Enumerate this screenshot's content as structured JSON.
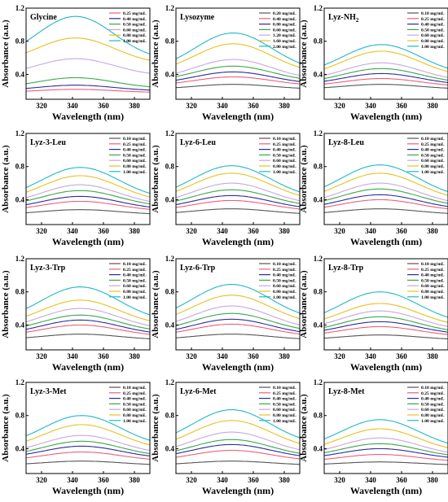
{
  "chart_data": [
    {
      "type": "line",
      "title": "Glycine",
      "title_sub": "",
      "xlabel": "Wavelength (nm)",
      "ylabel": "Absorbance (a.u.)",
      "xlim": [
        310,
        390
      ],
      "ylim": [
        0.1,
        1.2
      ],
      "xticks": [
        "320",
        "340",
        "360",
        "380"
      ],
      "yticks": [
        "0.4",
        "0.8",
        "1.2"
      ],
      "legend_position": "top-right",
      "peak_x": 342,
      "series": [
        {
          "name": "0.25 mg/mL",
          "color": "#e8607a",
          "edge": 0.18,
          "peak": 0.22
        },
        {
          "name": "0.40 mg/mL",
          "color": "#2c2c9a",
          "edge": 0.2,
          "peak": 0.27
        },
        {
          "name": "0.50 mg/mL",
          "color": "#3aa84a",
          "edge": 0.23,
          "peak": 0.36
        },
        {
          "name": "0.60 mg/mL",
          "color": "#c8a6e0",
          "edge": 0.38,
          "peak": 0.59
        },
        {
          "name": "0.80 mg/mL",
          "color": "#e8c020",
          "edge": 0.52,
          "peak": 0.84
        },
        {
          "name": "1.00 mg/mL",
          "color": "#20b8c8",
          "edge": 0.56,
          "peak": 1.1
        }
      ]
    },
    {
      "type": "line",
      "title": "Lysozyme",
      "title_sub": "",
      "xlabel": "Wavelength (nm)",
      "ylabel": "Absorbance (a.u.)",
      "xlim": [
        310,
        390
      ],
      "ylim": [
        0.1,
        1.2
      ],
      "xticks": [
        "320",
        "340",
        "360",
        "380"
      ],
      "yticks": [
        "0.4",
        "0.8",
        "1.2"
      ],
      "legend_position": "top-right",
      "peak_x": 347,
      "series": [
        {
          "name": "0.20 mg/mL",
          "color": "#555555",
          "edge": 0.22,
          "peak": 0.28
        },
        {
          "name": "0.40 mg/mL",
          "color": "#e8607a",
          "edge": 0.26,
          "peak": 0.37
        },
        {
          "name": "0.80 mg/mL",
          "color": "#2c2c9a",
          "edge": 0.28,
          "peak": 0.43
        },
        {
          "name": "0.60 mg/mL",
          "color": "#3aa84a",
          "edge": 0.31,
          "peak": 0.5
        },
        {
          "name": "1.20 mg/mL",
          "color": "#c8a6e0",
          "edge": 0.33,
          "peak": 0.58
        },
        {
          "name": "1.60 mg/mL",
          "color": "#e8c020",
          "edge": 0.4,
          "peak": 0.77
        },
        {
          "name": "2.00 mg/mL",
          "color": "#20b8c8",
          "edge": 0.43,
          "peak": 0.9
        }
      ]
    },
    {
      "type": "line",
      "title": "Lyz-NH",
      "title_sub": "2",
      "xlabel": "Wavelength (nm)",
      "ylabel": "Absorbance (a.u.)",
      "xlim": [
        310,
        390
      ],
      "ylim": [
        0.1,
        1.2
      ],
      "xticks": [
        "320",
        "340",
        "360",
        "380"
      ],
      "yticks": [
        "0.4",
        "0.8",
        "1.2"
      ],
      "legend_position": "top-right",
      "peak_x": 347,
      "series": [
        {
          "name": "0.10 mg/mL",
          "color": "#555555",
          "edge": 0.22,
          "peak": 0.28
        },
        {
          "name": "0.25 mg/mL",
          "color": "#e8607a",
          "edge": 0.25,
          "peak": 0.35
        },
        {
          "name": "0.40 mg/mL",
          "color": "#2c2c9a",
          "edge": 0.27,
          "peak": 0.41
        },
        {
          "name": "0.50 mg/mL",
          "color": "#3aa84a",
          "edge": 0.29,
          "peak": 0.47
        },
        {
          "name": "0.60 mg/mL",
          "color": "#c8a6e0",
          "edge": 0.31,
          "peak": 0.54
        },
        {
          "name": "0.80 mg/mL",
          "color": "#e8c020",
          "edge": 0.36,
          "peak": 0.68
        },
        {
          "name": "1.00 mg/mL",
          "color": "#20b8c8",
          "edge": 0.39,
          "peak": 0.76
        }
      ]
    },
    {
      "type": "line",
      "title": "Lyz-3-Leu",
      "title_sub": "",
      "xlabel": "Wavelength (nm)",
      "ylabel": "Absorbance (a.u.)",
      "xlim": [
        310,
        390
      ],
      "ylim": [
        0.1,
        1.2
      ],
      "xticks": [
        "320",
        "340",
        "360",
        "380"
      ],
      "yticks": [
        "0.4",
        "0.8",
        "1.2"
      ],
      "legend_position": "top-right",
      "peak_x": 345,
      "series": [
        {
          "name": "0.10 mg/mL",
          "color": "#555555",
          "edge": 0.22,
          "peak": 0.28
        },
        {
          "name": "0.25 mg/mL",
          "color": "#e8607a",
          "edge": 0.26,
          "peak": 0.38
        },
        {
          "name": "0.40 mg/mL",
          "color": "#2c2c9a",
          "edge": 0.28,
          "peak": 0.44
        },
        {
          "name": "0.50 mg/mL",
          "color": "#3aa84a",
          "edge": 0.31,
          "peak": 0.51
        },
        {
          "name": "0.60 mg/mL",
          "color": "#c8a6e0",
          "edge": 0.33,
          "peak": 0.58
        },
        {
          "name": "0.80 mg/mL",
          "color": "#e8c020",
          "edge": 0.37,
          "peak": 0.69
        },
        {
          "name": "1.00 mg/mL",
          "color": "#20b8c8",
          "edge": 0.4,
          "peak": 0.79
        }
      ]
    },
    {
      "type": "line",
      "title": "Lyz-6-Leu",
      "title_sub": "",
      "xlabel": "Wavelength (nm)",
      "ylabel": "Absorbance (a.u.)",
      "xlim": [
        310,
        390
      ],
      "ylim": [
        0.1,
        1.2
      ],
      "xticks": [
        "320",
        "340",
        "360",
        "380"
      ],
      "yticks": [
        "0.4",
        "0.8",
        "1.2"
      ],
      "legend_position": "top-right",
      "peak_x": 346,
      "series": [
        {
          "name": "0.10 mg/mL",
          "color": "#555555",
          "edge": 0.22,
          "peak": 0.29
        },
        {
          "name": "0.25 mg/mL",
          "color": "#e8607a",
          "edge": 0.26,
          "peak": 0.39
        },
        {
          "name": "0.40 mg/mL",
          "color": "#2c2c9a",
          "edge": 0.28,
          "peak": 0.45
        },
        {
          "name": "0.50 mg/mL",
          "color": "#3aa84a",
          "edge": 0.31,
          "peak": 0.52
        },
        {
          "name": "0.60 mg/mL",
          "color": "#c8a6e0",
          "edge": 0.33,
          "peak": 0.6
        },
        {
          "name": "0.80 mg/mL",
          "color": "#e8c020",
          "edge": 0.38,
          "peak": 0.72
        },
        {
          "name": "1.00 mg/mL",
          "color": "#20b8c8",
          "edge": 0.41,
          "peak": 0.81
        }
      ]
    },
    {
      "type": "line",
      "title": "Lyz-8-Leu",
      "title_sub": "",
      "xlabel": "Wavelength (nm)",
      "ylabel": "Absorbance (a.u.)",
      "xlim": [
        310,
        390
      ],
      "ylim": [
        0.1,
        1.2
      ],
      "xticks": [
        "320",
        "340",
        "360",
        "380"
      ],
      "yticks": [
        "0.4",
        "0.8",
        "1.2"
      ],
      "legend_position": "top-right",
      "peak_x": 346,
      "series": [
        {
          "name": "0.10 mg/mL",
          "color": "#555555",
          "edge": 0.22,
          "peak": 0.29
        },
        {
          "name": "0.25 mg/mL",
          "color": "#e8607a",
          "edge": 0.26,
          "peak": 0.4
        },
        {
          "name": "0.40 mg/mL",
          "color": "#2c2c9a",
          "edge": 0.28,
          "peak": 0.46
        },
        {
          "name": "0.50 mg/mL",
          "color": "#3aa84a",
          "edge": 0.31,
          "peak": 0.53
        },
        {
          "name": "0.60 mg/mL",
          "color": "#c8a6e0",
          "edge": 0.33,
          "peak": 0.6
        },
        {
          "name": "0.80 mg/mL",
          "color": "#e8c020",
          "edge": 0.38,
          "peak": 0.72
        },
        {
          "name": "1.00 mg/mL",
          "color": "#20b8c8",
          "edge": 0.41,
          "peak": 0.82
        }
      ]
    },
    {
      "type": "line",
      "title": "Lyz-3-Trp",
      "title_sub": "",
      "xlabel": "Wavelength (nm)",
      "ylabel": "Absorbance (a.u.)",
      "xlim": [
        310,
        390
      ],
      "ylim": [
        0.1,
        1.2
      ],
      "xticks": [
        "320",
        "340",
        "360",
        "380"
      ],
      "yticks": [
        "0.4",
        "0.8",
        "1.2"
      ],
      "legend_position": "top-right",
      "peak_x": 345,
      "series": [
        {
          "name": "0.10 mg/mL",
          "color": "#555555",
          "edge": 0.22,
          "peak": 0.29
        },
        {
          "name": "0.25 mg/mL",
          "color": "#e8607a",
          "edge": 0.26,
          "peak": 0.4
        },
        {
          "name": "0.40 mg/mL",
          "color": "#2c2c9a",
          "edge": 0.28,
          "peak": 0.46
        },
        {
          "name": "0.50 mg/mL",
          "color": "#3aa84a",
          "edge": 0.31,
          "peak": 0.52
        },
        {
          "name": "0.60 mg/mL",
          "color": "#c8a6e0",
          "edge": 0.34,
          "peak": 0.6
        },
        {
          "name": "0.80 mg/mL",
          "color": "#e8c020",
          "edge": 0.39,
          "peak": 0.7
        },
        {
          "name": "1.00 mg/mL",
          "color": "#20b8c8",
          "edge": 0.44,
          "peak": 0.86
        }
      ]
    },
    {
      "type": "line",
      "title": "Lyz-6-Trp",
      "title_sub": "",
      "xlabel": "Wavelength (nm)",
      "ylabel": "Absorbance (a.u.)",
      "xlim": [
        310,
        390
      ],
      "ylim": [
        0.1,
        1.2
      ],
      "xticks": [
        "320",
        "340",
        "360",
        "380"
      ],
      "yticks": [
        "0.4",
        "0.8",
        "1.2"
      ],
      "legend_position": "top-right",
      "peak_x": 346,
      "series": [
        {
          "name": "0.10 mg/mL",
          "color": "#555555",
          "edge": 0.22,
          "peak": 0.29
        },
        {
          "name": "0.25 mg/mL",
          "color": "#e8607a",
          "edge": 0.26,
          "peak": 0.41
        },
        {
          "name": "0.40 mg/mL",
          "color": "#2c2c9a",
          "edge": 0.28,
          "peak": 0.47
        },
        {
          "name": "0.50 mg/mL",
          "color": "#3aa84a",
          "edge": 0.31,
          "peak": 0.54
        },
        {
          "name": "0.60 mg/mL",
          "color": "#c8a6e0",
          "edge": 0.34,
          "peak": 0.63
        },
        {
          "name": "0.80 mg/mL",
          "color": "#e8c020",
          "edge": 0.4,
          "peak": 0.76
        },
        {
          "name": "1.00 mg/mL",
          "color": "#20b8c8",
          "edge": 0.45,
          "peak": 0.89
        }
      ]
    },
    {
      "type": "line",
      "title": "Lyz-8-Trp",
      "title_sub": "",
      "xlabel": "Wavelength (nm)",
      "ylabel": "Absorbance (a.u.)",
      "xlim": [
        310,
        390
      ],
      "ylim": [
        0.1,
        1.2
      ],
      "xticks": [
        "320",
        "340",
        "360",
        "380"
      ],
      "yticks": [
        "0.4",
        "0.8",
        "1.2"
      ],
      "legend_position": "top-right",
      "peak_x": 346,
      "series": [
        {
          "name": "0.10 mg/mL",
          "color": "#555555",
          "edge": 0.22,
          "peak": 0.28
        },
        {
          "name": "0.25 mg/mL",
          "color": "#e8607a",
          "edge": 0.26,
          "peak": 0.38
        },
        {
          "name": "0.40 mg/mL",
          "color": "#2c2c9a",
          "edge": 0.28,
          "peak": 0.44
        },
        {
          "name": "0.50 mg/mL",
          "color": "#3aa84a",
          "edge": 0.3,
          "peak": 0.5
        },
        {
          "name": "0.60 mg/mL",
          "color": "#c8a6e0",
          "edge": 0.33,
          "peak": 0.57
        },
        {
          "name": "0.80 mg/mL",
          "color": "#e8c020",
          "edge": 0.37,
          "peak": 0.66
        },
        {
          "name": "1.00 mg/mL",
          "color": "#20b8c8",
          "edge": 0.41,
          "peak": 0.8
        }
      ]
    },
    {
      "type": "line",
      "title": "Lyz-3-Met",
      "title_sub": "",
      "xlabel": "Wavelength (nm)",
      "ylabel": "Absorbance (a.u.)",
      "xlim": [
        310,
        390
      ],
      "ylim": [
        0.1,
        1.2
      ],
      "xticks": [
        "320",
        "340",
        "360",
        "380"
      ],
      "yticks": [
        "0.4",
        "0.8",
        "1.2"
      ],
      "legend_position": "top-right",
      "peak_x": 346,
      "series": [
        {
          "name": "0.10 mg/mL",
          "color": "#555555",
          "edge": 0.2,
          "peak": 0.25
        },
        {
          "name": "0.25 mg/mL",
          "color": "#e8607a",
          "edge": 0.25,
          "peak": 0.36
        },
        {
          "name": "0.40 mg/mL",
          "color": "#2c2c9a",
          "edge": 0.28,
          "peak": 0.43
        },
        {
          "name": "0.50 mg/mL",
          "color": "#3aa84a",
          "edge": 0.3,
          "peak": 0.49
        },
        {
          "name": "0.60 mg/mL",
          "color": "#c8a6e0",
          "edge": 0.33,
          "peak": 0.56
        },
        {
          "name": "0.80 mg/mL",
          "color": "#e8c020",
          "edge": 0.38,
          "peak": 0.69
        },
        {
          "name": "1.00 mg/mL",
          "color": "#20b8c8",
          "edge": 0.42,
          "peak": 0.8
        }
      ]
    },
    {
      "type": "line",
      "title": "Lyz-6-Met",
      "title_sub": "",
      "xlabel": "Wavelength (nm)",
      "ylabel": "Absorbance (a.u.)",
      "xlim": [
        310,
        390
      ],
      "ylim": [
        0.1,
        1.2
      ],
      "xticks": [
        "320",
        "340",
        "360",
        "380"
      ],
      "yticks": [
        "0.4",
        "0.8",
        "1.2"
      ],
      "legend_position": "top-right",
      "peak_x": 346,
      "series": [
        {
          "name": "0.10 mg/mL",
          "color": "#555555",
          "edge": 0.2,
          "peak": 0.25
        },
        {
          "name": "0.25 mg/mL",
          "color": "#e8607a",
          "edge": 0.25,
          "peak": 0.38
        },
        {
          "name": "0.40 mg/mL",
          "color": "#2c2c9a",
          "edge": 0.28,
          "peak": 0.45
        },
        {
          "name": "0.50 mg/mL",
          "color": "#3aa84a",
          "edge": 0.3,
          "peak": 0.51
        },
        {
          "name": "0.60 mg/mL",
          "color": "#c8a6e0",
          "edge": 0.33,
          "peak": 0.6
        },
        {
          "name": "0.80 mg/mL",
          "color": "#e8c020",
          "edge": 0.39,
          "peak": 0.74
        },
        {
          "name": "1.00 mg/mL",
          "color": "#20b8c8",
          "edge": 0.44,
          "peak": 0.87
        }
      ]
    },
    {
      "type": "line",
      "title": "Lyz-8-Met",
      "title_sub": "",
      "xlabel": "Wavelength (nm)",
      "ylabel": "Absorbance (a.u.)",
      "xlim": [
        310,
        390
      ],
      "ylim": [
        0.1,
        1.2
      ],
      "xticks": [
        "320",
        "340",
        "360",
        "380"
      ],
      "yticks": [
        "0.4",
        "0.8",
        "1.2"
      ],
      "legend_position": "top-right",
      "peak_x": 346,
      "series": [
        {
          "name": "0.10 mg/mL",
          "color": "#555555",
          "edge": 0.2,
          "peak": 0.24
        },
        {
          "name": "0.25 mg/mL",
          "color": "#e8607a",
          "edge": 0.24,
          "peak": 0.33
        },
        {
          "name": "0.40 mg/mL",
          "color": "#2c2c9a",
          "edge": 0.27,
          "peak": 0.4
        },
        {
          "name": "0.50 mg/mL",
          "color": "#3aa84a",
          "edge": 0.29,
          "peak": 0.46
        },
        {
          "name": "0.60 mg/mL",
          "color": "#c8a6e0",
          "edge": 0.31,
          "peak": 0.53
        },
        {
          "name": "0.80 mg/mL",
          "color": "#e8c020",
          "edge": 0.35,
          "peak": 0.64
        },
        {
          "name": "1.00 mg/mL",
          "color": "#20b8c8",
          "edge": 0.39,
          "peak": 0.75
        }
      ]
    }
  ]
}
